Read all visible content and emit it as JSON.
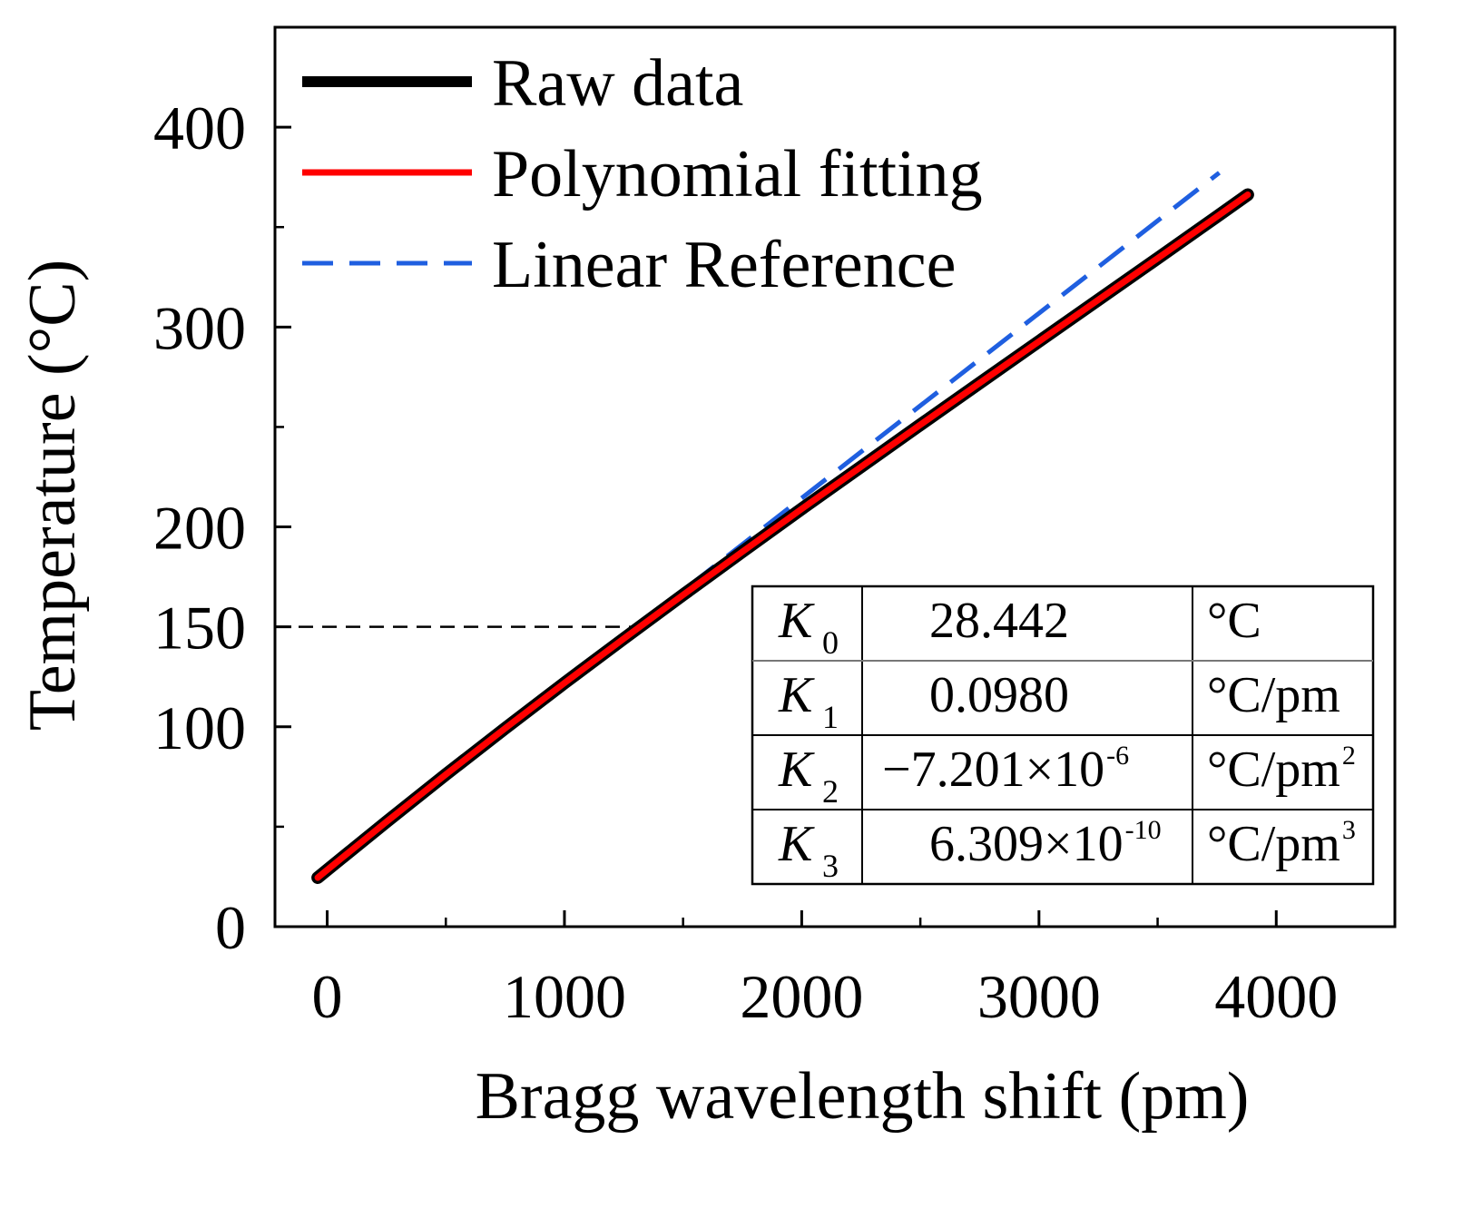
{
  "chart_data": {
    "type": "line",
    "title": "",
    "xlabel": "Bragg wavelength shift (pm)",
    "ylabel": "Temperature (°C)",
    "xlim": [
      -220,
      4500
    ],
    "ylim": [
      0,
      450
    ],
    "x_ticks": [
      0,
      1000,
      2000,
      3000,
      4000
    ],
    "x_tick_labels": [
      "0",
      "1000",
      "2000",
      "3000",
      "4000"
    ],
    "y_ticks": [
      0,
      100,
      150,
      200,
      300,
      400
    ],
    "y_tick_labels": [
      "0",
      "100",
      "150",
      "200",
      "300",
      "400"
    ],
    "grid": false,
    "legend_position": "top-left",
    "series": [
      {
        "name": "Raw data",
        "color": "#000000",
        "style": "solid",
        "x": [
          -40,
          0,
          250,
          500,
          750,
          1000,
          1250,
          1500,
          1750,
          2000,
          2250,
          2500,
          2750,
          3000,
          3250,
          3500,
          3750,
          3880
        ],
        "y": [
          24.5,
          28.4,
          52.5,
          76.1,
          99.2,
          121.9,
          144.1,
          166.0,
          187.6,
          209.0,
          230.1,
          251.1,
          272.0,
          292.8,
          313.6,
          334.4,
          355.3,
          366.2
        ]
      },
      {
        "name": "Polynomial fitting",
        "color": "#ff0000",
        "style": "solid",
        "x": [
          -40,
          0,
          250,
          500,
          750,
          1000,
          1250,
          1500,
          1750,
          2000,
          2250,
          2500,
          2750,
          3000,
          3250,
          3500,
          3750,
          3880
        ],
        "y": [
          24.5,
          28.4,
          52.5,
          76.1,
          99.2,
          121.9,
          144.1,
          166.0,
          187.6,
          209.0,
          230.1,
          251.1,
          272.0,
          292.8,
          313.6,
          334.4,
          355.3,
          366.2
        ]
      },
      {
        "name": "Linear Reference",
        "color": "#1f5fe0",
        "style": "dashed",
        "x": [
          -40,
          3760
        ],
        "y": [
          25.7,
          377.2
        ]
      }
    ],
    "annotations": {
      "reference_line": {
        "y": 150,
        "x_end": 1350,
        "color": "#000000",
        "style": "dashed"
      },
      "coefficient_table": [
        {
          "symbol": "K",
          "sub": "0",
          "value": "28.442",
          "value_exp": "",
          "unit": "°C",
          "unit_sup": ""
        },
        {
          "symbol": "K",
          "sub": "1",
          "value": "0.0980",
          "value_exp": "",
          "unit": "°C/pm",
          "unit_sup": ""
        },
        {
          "symbol": "K",
          "sub": "2",
          "value": "−7.201×10",
          "value_exp": "-6",
          "unit": "°C/pm",
          "unit_sup": "2"
        },
        {
          "symbol": "K",
          "sub": "3",
          "value": "6.309×10",
          "value_exp": "-10",
          "unit": "°C/pm",
          "unit_sup": "3"
        }
      ]
    }
  }
}
